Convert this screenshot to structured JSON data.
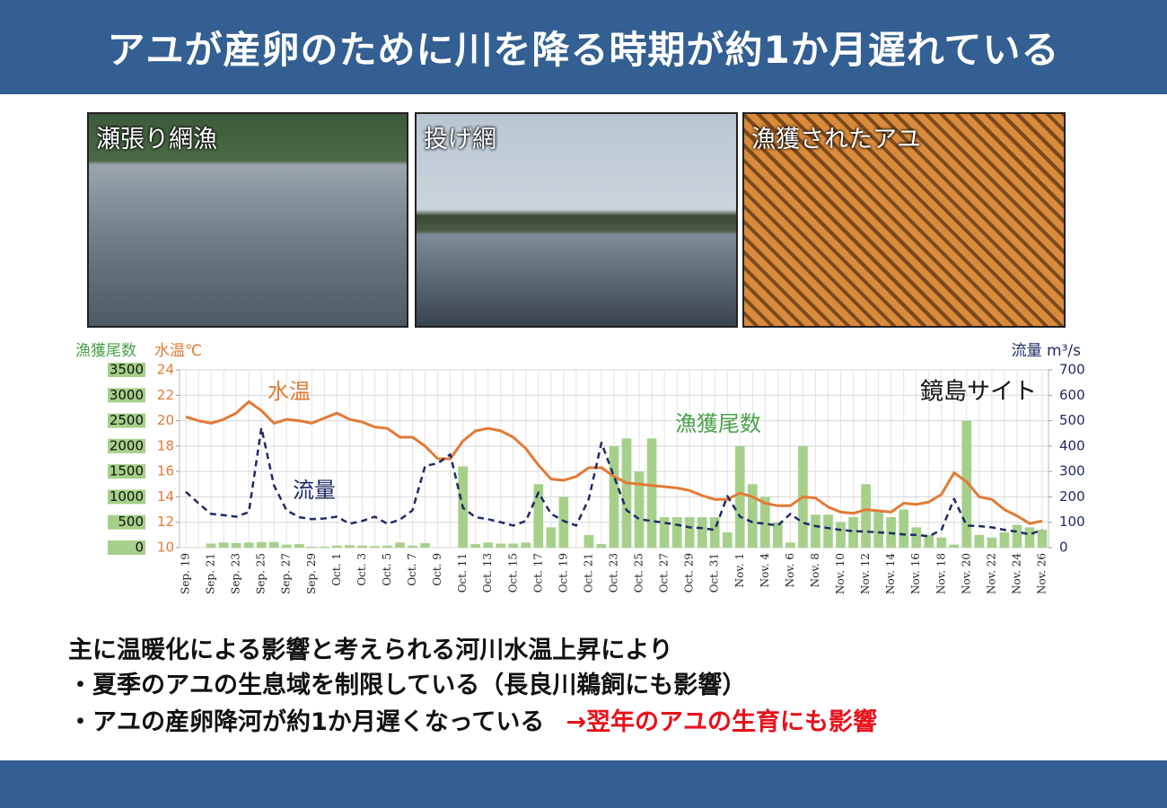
{
  "header": {
    "title": "アユが産卵のために川を降る時期が約1か月遅れている"
  },
  "photos": [
    {
      "caption": "瀬張り網漁"
    },
    {
      "caption": "投げ網"
    },
    {
      "caption": "漁獲されたアユ"
    }
  ],
  "chart_data": {
    "type": "combo",
    "annotation": "鏡島サイト",
    "y_label": "漁獲尾数",
    "y2_label": "水温℃",
    "y3_label": "流量 m³/s",
    "categories": [
      "Sep. 19",
      null,
      "Sep. 21",
      null,
      "Sep. 23",
      null,
      "Sep. 25",
      null,
      "Sep. 27",
      null,
      "Sep. 29",
      null,
      "Oct. 1",
      null,
      "Oct. 3",
      null,
      "Oct. 5",
      null,
      "Oct. 7",
      null,
      "Oct. 9",
      null,
      "Oct. 11",
      null,
      "Oct. 13",
      null,
      "Oct. 15",
      null,
      "Oct. 17",
      null,
      "Oct. 19",
      null,
      "Oct. 21",
      null,
      "Oct. 23",
      null,
      "Oct. 25",
      null,
      "Oct. 27",
      null,
      "Oct. 29",
      null,
      "Oct. 31",
      null,
      "Nov. 1",
      null,
      "Nov. 4",
      null,
      "Nov. 6",
      null,
      "Nov. 8",
      null,
      "Nov. 10",
      null,
      "Nov. 12",
      null,
      "Nov. 14",
      null,
      "Nov. 16",
      null,
      "Nov. 18",
      null,
      "Nov. 20",
      null,
      "Nov. 22",
      null,
      "Nov. 24",
      null,
      "Nov. 26"
    ],
    "ylim": [
      0,
      3500
    ],
    "yticks": [
      0,
      500,
      1000,
      1500,
      2000,
      2500,
      3000,
      3500
    ],
    "y2lim": [
      10,
      24
    ],
    "y2ticks": [
      10,
      12,
      14,
      16,
      18,
      20,
      22,
      24
    ],
    "y3lim": [
      0,
      700
    ],
    "y3ticks": [
      0,
      100,
      200,
      300,
      400,
      500,
      600,
      700
    ],
    "grid": true,
    "series": [
      {
        "name": "漁獲尾数",
        "type": "bar",
        "axis": "y",
        "color": "#a6d08a",
        "values": [
          0,
          0,
          80,
          100,
          90,
          100,
          110,
          110,
          60,
          70,
          20,
          20,
          40,
          50,
          40,
          30,
          40,
          100,
          40,
          90,
          0,
          0,
          1600,
          70,
          100,
          80,
          80,
          100,
          1250,
          400,
          1000,
          0,
          250,
          70,
          2000,
          2150,
          1500,
          2150,
          600,
          600,
          600,
          600,
          600,
          300,
          2000,
          1250,
          1000,
          500,
          100,
          2000,
          650,
          650,
          500,
          600,
          1250,
          750,
          600,
          750,
          400,
          250,
          200,
          60,
          2500,
          250,
          200,
          300,
          450,
          400,
          350
        ]
      },
      {
        "name": "水温",
        "type": "line",
        "axis": "y2",
        "color": "#e27a36",
        "values": [
          20.3,
          20.0,
          19.8,
          20.1,
          20.6,
          21.5,
          20.8,
          19.8,
          20.1,
          20.0,
          19.8,
          20.2,
          20.6,
          20.1,
          19.9,
          19.5,
          19.4,
          18.7,
          18.7,
          18.0,
          17.0,
          17.0,
          18.4,
          19.2,
          19.4,
          19.2,
          18.7,
          17.8,
          16.5,
          15.4,
          15.3,
          15.6,
          16.3,
          16.3,
          15.6,
          15.1,
          15.0,
          14.9,
          14.8,
          14.7,
          14.5,
          14.1,
          13.8,
          13.8,
          14.3,
          14.0,
          13.5,
          13.3,
          13.3,
          14.0,
          13.9,
          13.2,
          12.8,
          12.7,
          13.0,
          12.9,
          12.8,
          13.5,
          13.4,
          13.6,
          14.2,
          15.9,
          15.2,
          14.0,
          13.8,
          13.0,
          12.5,
          11.9,
          12.1
        ]
      },
      {
        "name": "流量",
        "type": "line",
        "axis": "y3",
        "dashed": true,
        "color": "#1f2a66",
        "values": [
          220,
          175,
          133,
          128,
          122,
          140,
          472,
          245,
          147,
          120,
          112,
          115,
          122,
          94,
          105,
          122,
          94,
          110,
          147,
          322,
          332,
          367,
          157,
          120,
          112,
          100,
          87,
          105,
          217,
          133,
          105,
          87,
          192,
          413,
          280,
          147,
          112,
          105,
          98,
          90,
          80,
          77,
          70,
          203,
          122,
          100,
          94,
          87,
          133,
          98,
          85,
          77,
          70,
          65,
          63,
          60,
          57,
          52,
          50,
          45,
          70,
          192,
          87,
          85,
          80,
          70,
          63,
          52,
          70
        ]
      }
    ]
  },
  "text": {
    "lines": [
      "主に温暖化による影響と考えられる河川水温上昇により",
      "・夏季のアユの生息域を制限している（長良川鵜飼にも影響）",
      "・アユの産卵降河が約1か月遅くなっている"
    ],
    "highlight": "→翌年のアユの生育にも影響"
  }
}
